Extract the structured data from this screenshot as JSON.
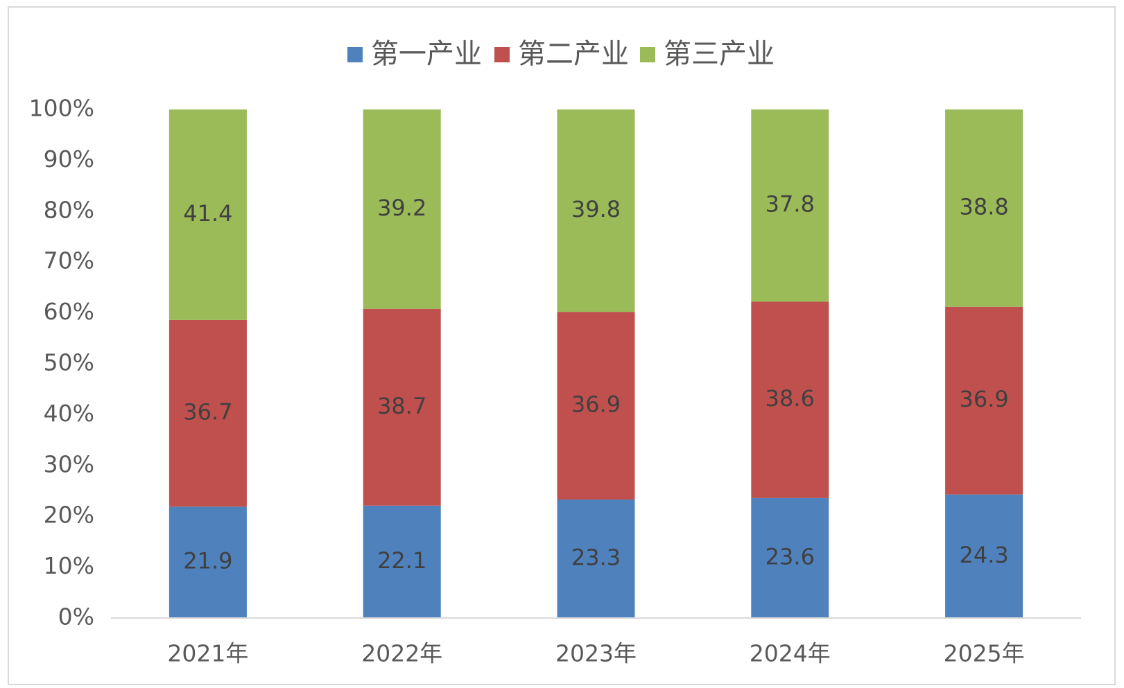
{
  "chart_data": {
    "type": "stacked_bar_percent",
    "categories": [
      "2021年",
      "2022年",
      "2023年",
      "2024年",
      "2025年"
    ],
    "series": [
      {
        "name": "第一产业",
        "color": "#4f81bd",
        "values": [
          21.9,
          22.1,
          23.3,
          23.6,
          24.3
        ]
      },
      {
        "name": "第二产业",
        "color": "#c0504d",
        "values": [
          36.7,
          38.7,
          36.9,
          38.6,
          36.9
        ]
      },
      {
        "name": "第三产业",
        "color": "#9bbb59",
        "values": [
          41.4,
          39.2,
          39.8,
          37.8,
          38.8
        ]
      }
    ],
    "ylim": [
      0,
      100
    ],
    "yticks": [
      {
        "value": 0,
        "label": "0%"
      },
      {
        "value": 10,
        "label": "10%"
      },
      {
        "value": 20,
        "label": "20%"
      },
      {
        "value": 30,
        "label": "30%"
      },
      {
        "value": 40,
        "label": "40%"
      },
      {
        "value": 50,
        "label": "50%"
      },
      {
        "value": 60,
        "label": "60%"
      },
      {
        "value": 70,
        "label": "70%"
      },
      {
        "value": 80,
        "label": "80%"
      },
      {
        "value": 90,
        "label": "90%"
      },
      {
        "value": 100,
        "label": "100%"
      }
    ],
    "grid": false,
    "legend": "top"
  }
}
